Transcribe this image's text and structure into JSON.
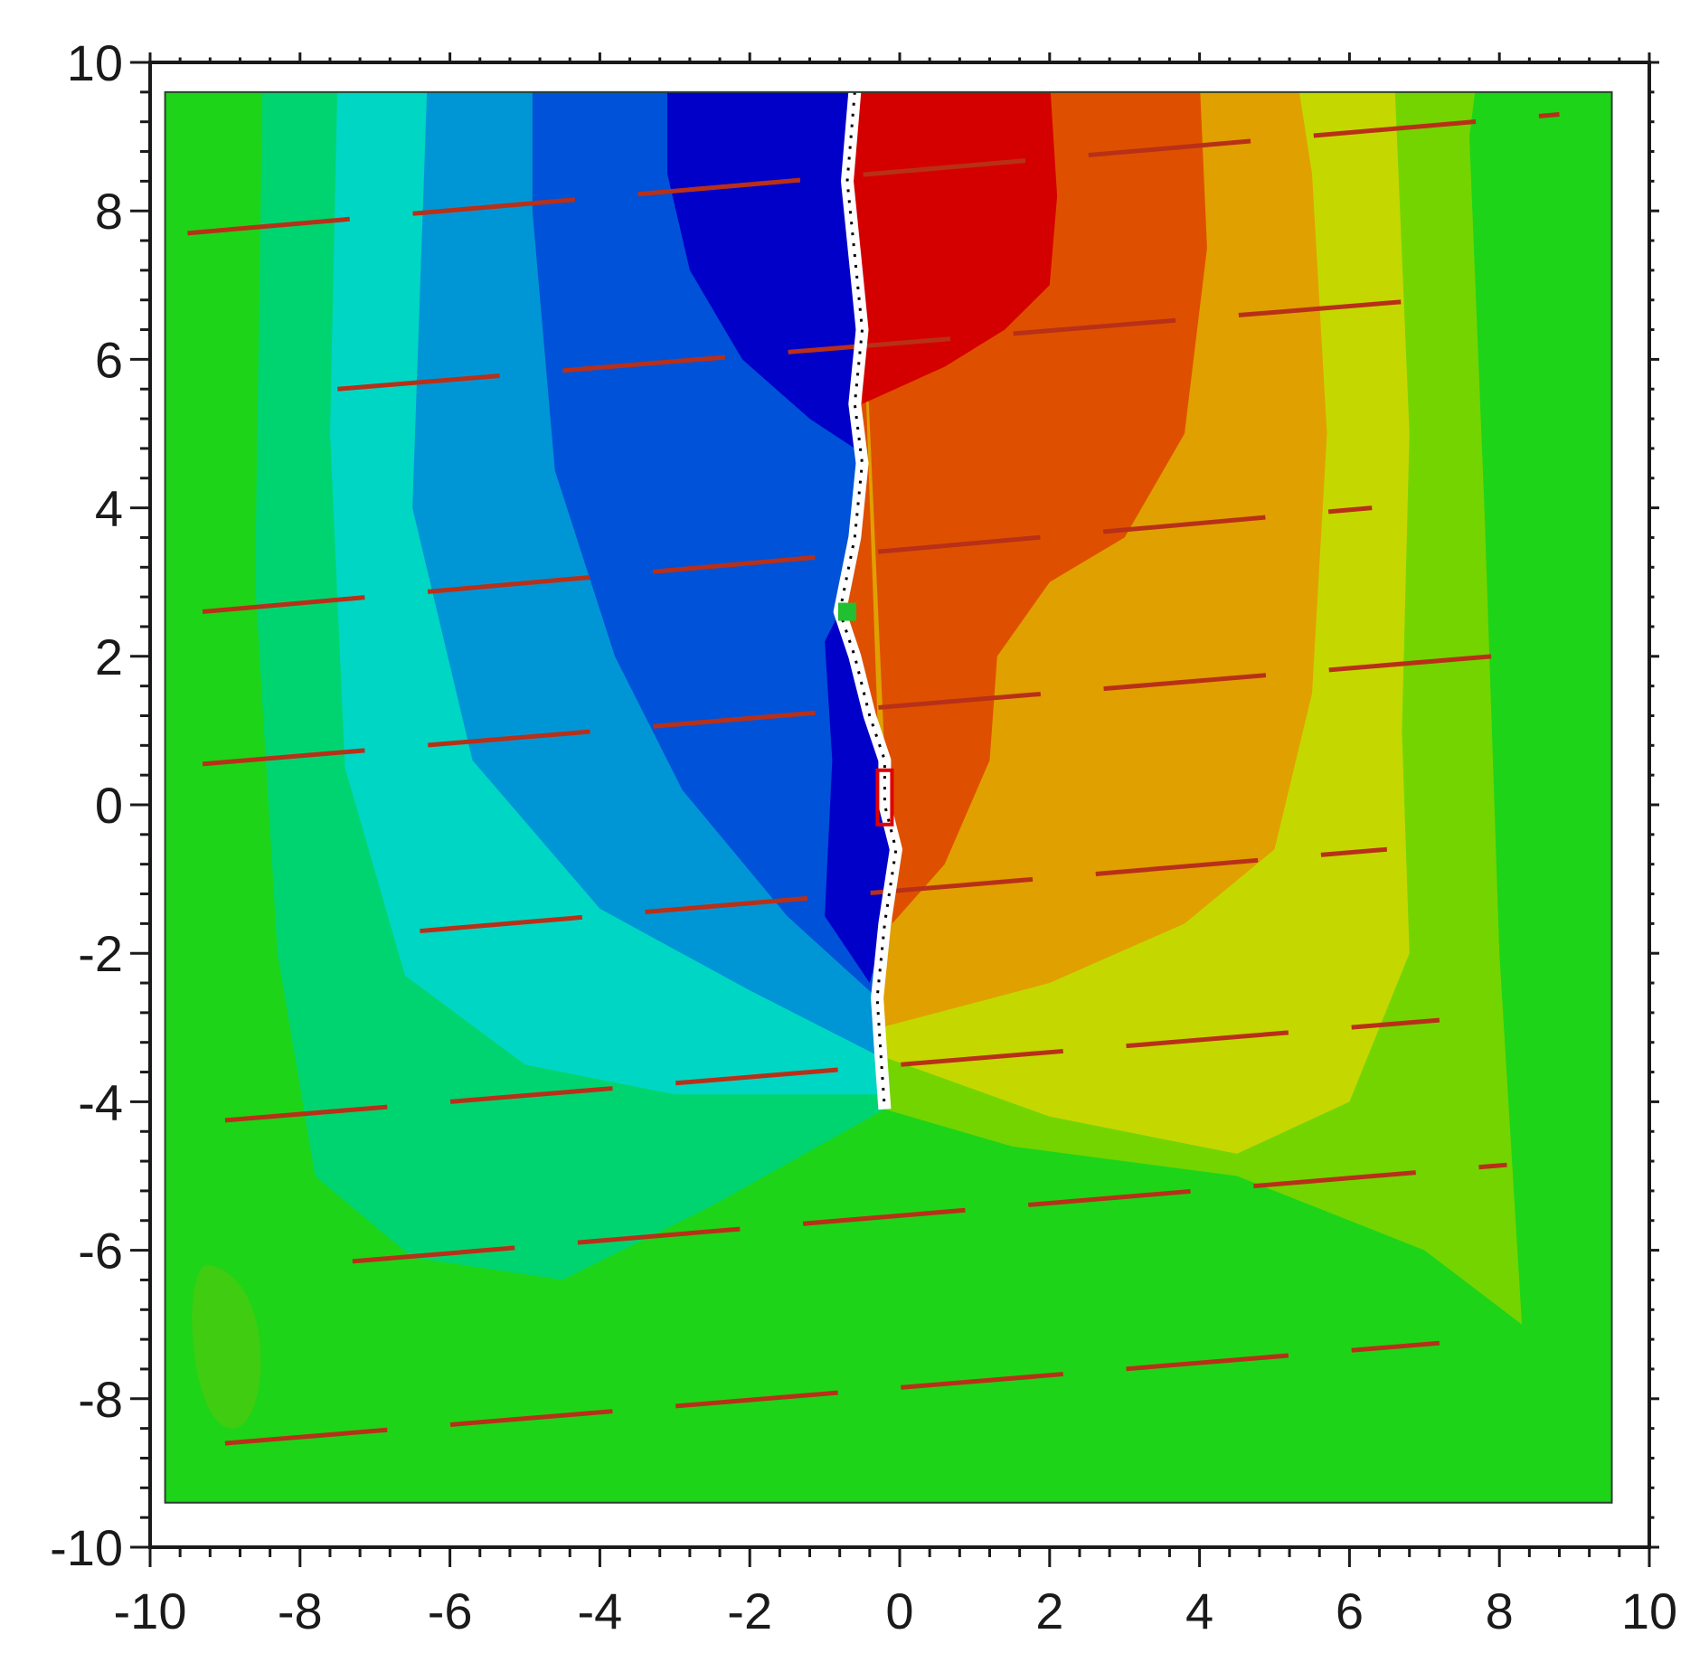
{
  "chart_data": {
    "type": "heatmap",
    "title": "",
    "xlabel": "",
    "ylabel": "",
    "xlim": [
      -10,
      10
    ],
    "ylim": [
      -10,
      10
    ],
    "x_ticks": [
      "-10",
      "-8",
      "-6",
      "-4",
      "-2",
      "0",
      "2",
      "4",
      "6",
      "8",
      "10"
    ],
    "y_ticks": [
      "10",
      "8",
      "6",
      "4",
      "2",
      "0",
      "-2",
      "-4",
      "-6",
      "-8",
      "-10"
    ],
    "data_extent": {
      "x": [
        -9.8,
        9.5
      ],
      "y": [
        -9.4,
        9.6
      ]
    },
    "grid": false,
    "legend": "none",
    "colormap": [
      "#0000c8",
      "#0050d8",
      "#0096d8",
      "#00d4c0",
      "#00d070",
      "#22d400",
      "#7ad400",
      "#c8d800",
      "#e0a000",
      "#e05000",
      "#d40000"
    ],
    "discontinuity_line": [
      [
        -0.6,
        9.6
      ],
      [
        -0.7,
        8.4
      ],
      [
        -0.6,
        7.4
      ],
      [
        -0.5,
        6.4
      ],
      [
        -0.6,
        5.4
      ],
      [
        -0.5,
        4.6
      ],
      [
        -0.6,
        3.6
      ],
      [
        -0.8,
        2.6
      ],
      [
        -0.6,
        2.0
      ],
      [
        -0.4,
        1.2
      ],
      [
        -0.2,
        0.6
      ],
      [
        -0.2,
        0.0
      ],
      [
        -0.05,
        -0.6
      ],
      [
        -0.2,
        -1.6
      ],
      [
        -0.3,
        -2.6
      ],
      [
        -0.25,
        -3.4
      ],
      [
        -0.2,
        -4.1
      ]
    ],
    "marked_points": [
      {
        "x": -0.7,
        "y": 2.6,
        "color": "#20c030"
      },
      {
        "x": -0.2,
        "y": 0.1,
        "color": "#e00000"
      }
    ],
    "dashed_lines": [
      {
        "y_start": 7.7,
        "y_end": 9.3,
        "x_start": -9.5,
        "x_end": 8.8
      },
      {
        "y_start": 5.6,
        "y_end": 6.8,
        "x_start": -7.5,
        "x_end": 7.0
      },
      {
        "y_start": 2.6,
        "y_end": 4.0,
        "x_start": -9.3,
        "x_end": 6.3
      },
      {
        "y_start": 0.55,
        "y_end": 2.0,
        "x_start": -9.3,
        "x_end": 7.9
      },
      {
        "y_start": -1.7,
        "y_end": -0.6,
        "x_start": -6.4,
        "x_end": 6.5
      },
      {
        "y_start": -4.25,
        "y_end": -2.9,
        "x_start": -9.0,
        "x_end": 7.2
      },
      {
        "y_start": -6.15,
        "y_end": -4.85,
        "x_start": -7.3,
        "x_end": 8.1
      },
      {
        "y_start": -8.6,
        "y_end": -7.25,
        "x_start": -9.0,
        "x_end": 7.2
      }
    ],
    "colors": {
      "dash_line": "#b83018",
      "crack": "#ffffff",
      "axis": "#1a1a1a",
      "frame": "#2a4030"
    }
  }
}
